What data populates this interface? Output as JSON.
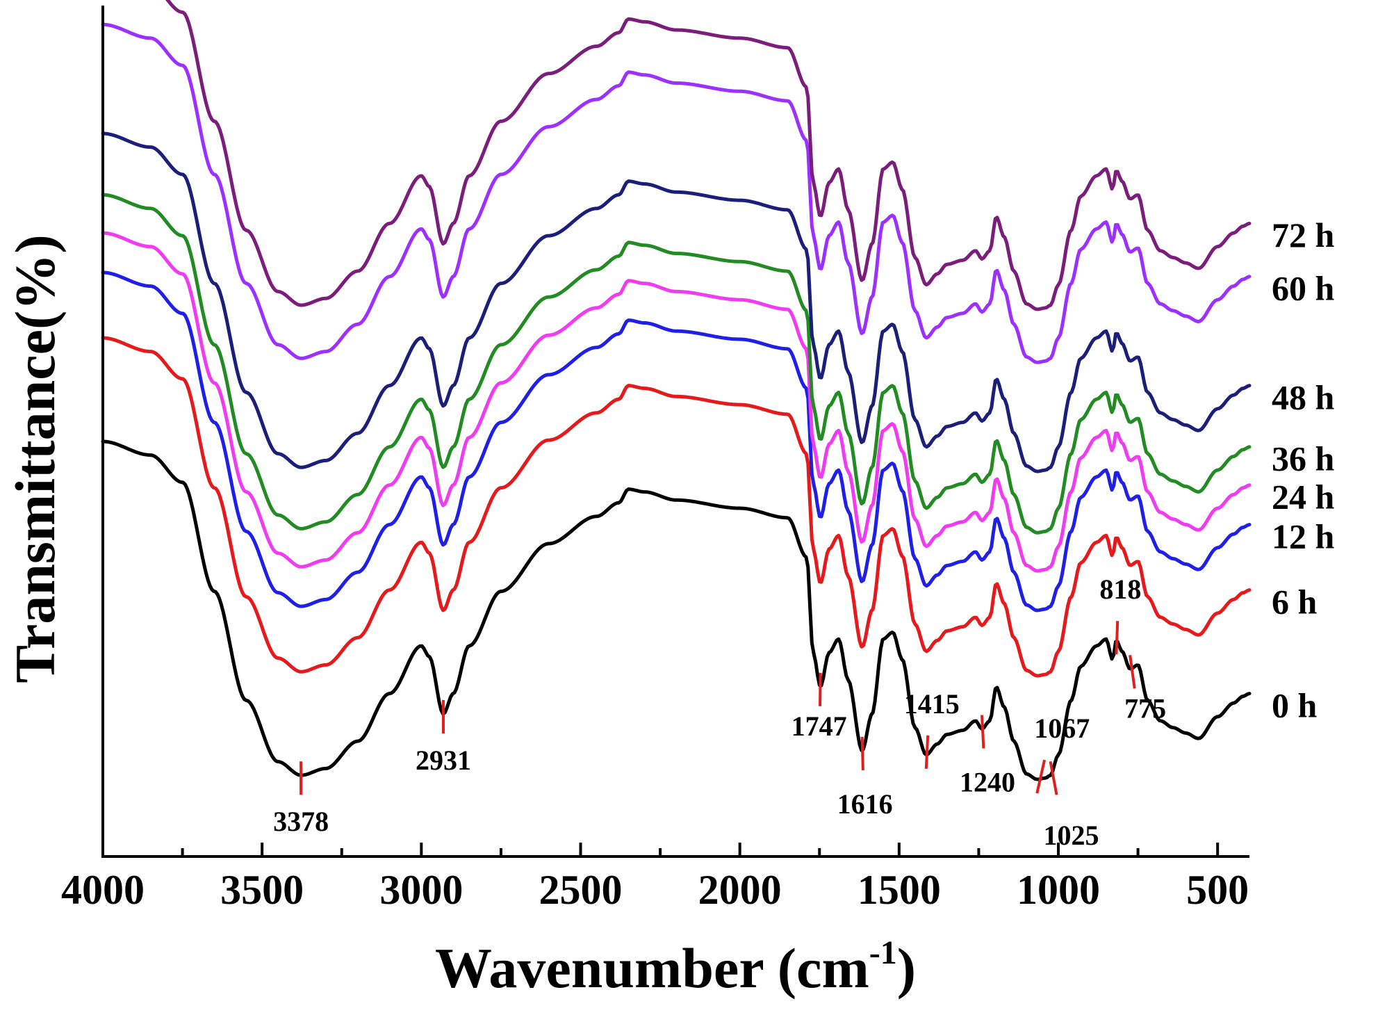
{
  "chart_data": {
    "type": "line",
    "title": "",
    "xlabel": "Wavenumber (cm",
    "xlabel_sup": "-1",
    "xlabel_close": ")",
    "ylabel": "Transmittance(%)",
    "xlim": [
      4000,
      400
    ],
    "x_ticks": [
      "4000",
      "3500",
      "3000",
      "2500",
      "2000",
      "1500",
      "1000",
      "500"
    ],
    "y_ticks": [],
    "grid": false,
    "series": [
      {
        "name": "0 h",
        "color": "#000000",
        "offset": 0
      },
      {
        "name": "6 h",
        "color": "#e41a1c",
        "offset": 7.6
      },
      {
        "name": "12 h",
        "color": "#1f1fe6",
        "offset": 12.4
      },
      {
        "name": "24 h",
        "color": "#f03cf0",
        "offset": 15.3
      },
      {
        "name": "36 h",
        "color": "#238b23",
        "offset": 18.1
      },
      {
        "name": "48 h",
        "color": "#1c1f7a",
        "offset": 22.6
      },
      {
        "name": "60 h",
        "color": "#9b30ff",
        "offset": 30.6
      },
      {
        "name": "72 h",
        "color": "#7b1e7b",
        "offset": 34.5
      }
    ],
    "peaks": [
      "3378",
      "2931",
      "1747",
      "1616",
      "1415",
      "1240",
      "1067",
      "1025",
      "818",
      "775"
    ],
    "peak_positions": [
      3378,
      2931,
      1747,
      1616,
      1415,
      1240,
      1067,
      1025,
      818,
      775
    ]
  }
}
